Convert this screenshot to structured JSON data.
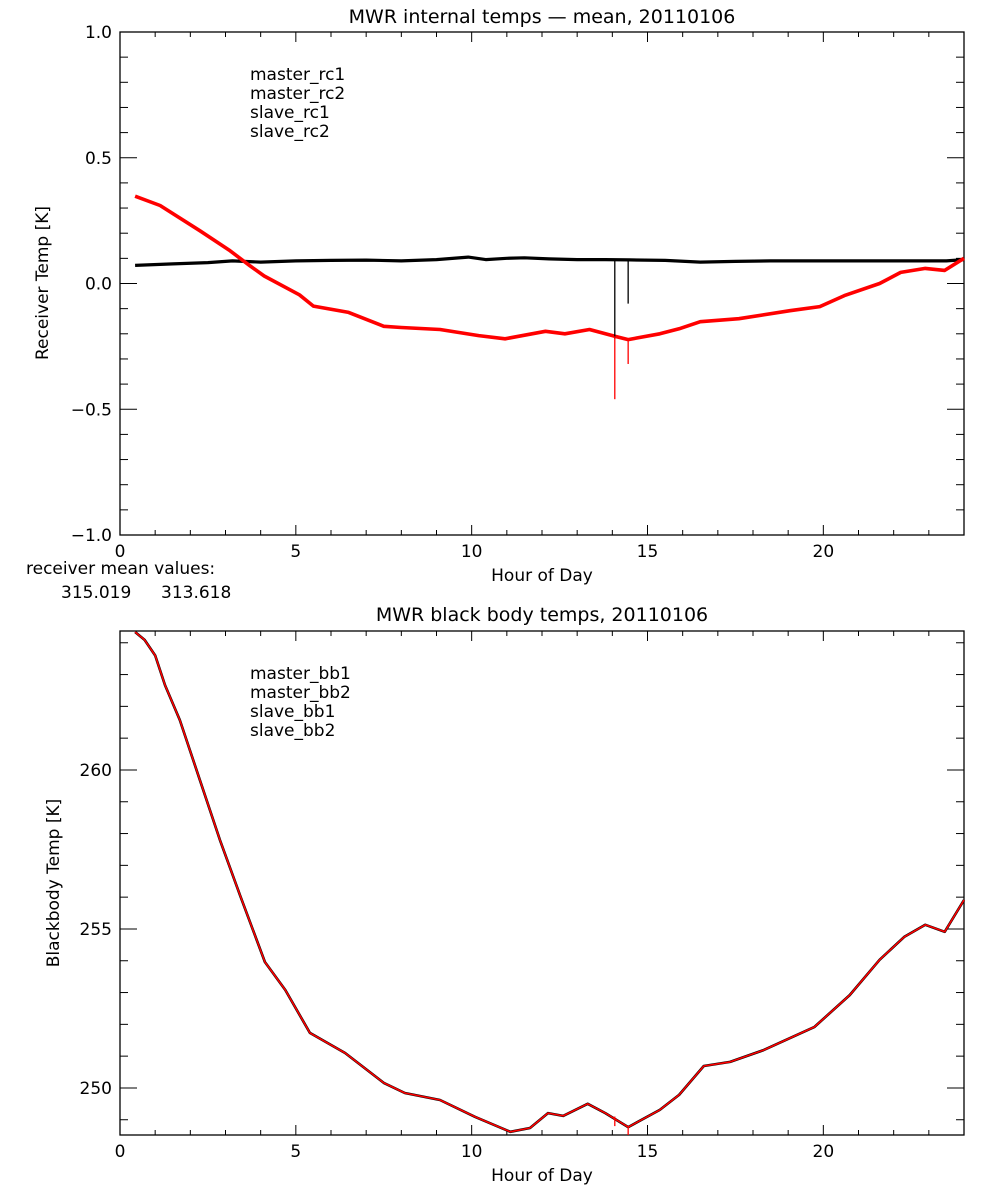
{
  "chart_data": [
    {
      "type": "line",
      "title": "MWR internal temps — mean, 20110106",
      "xlabel": "Hour of Day",
      "ylabel": "Receiver Temp [K]",
      "xlim": [
        0,
        24
      ],
      "ylim": [
        -1.0,
        1.0
      ],
      "x_major_ticks": [
        0,
        5,
        10,
        15,
        20
      ],
      "x_tick_labels": [
        "0",
        "5",
        "10",
        "15",
        "20"
      ],
      "x_minor_step": 1,
      "y_major_ticks": [
        -1.0,
        -0.5,
        0.0,
        0.5,
        1.0
      ],
      "y_tick_labels": [
        "−1.0",
        "−0.5",
        "0.0",
        "0.5",
        "1.0"
      ],
      "y_minor_step": 0.1,
      "grid": false,
      "legend_position": "top-left",
      "legend": [
        {
          "name": "master_rc1",
          "color": "#000000"
        },
        {
          "name": "master_rc2",
          "color": "#ff0000"
        },
        {
          "name": "slave_rc1",
          "color": "#0000ff"
        },
        {
          "name": "slave_rc2",
          "color": "#00ff00"
        }
      ],
      "series": [
        {
          "name": "master_rc1",
          "color": "#000000",
          "x": [
            0.43,
            1.5,
            2.5,
            3.2,
            4.0,
            5.0,
            6.0,
            7.0,
            8.0,
            9.0,
            9.9,
            10.4,
            11.0,
            11.5,
            12.2,
            13.0,
            13.8,
            14.5,
            15.5,
            16.5,
            17.5,
            18.5,
            19.5,
            20.5,
            21.5,
            22.5,
            23.5,
            24.0
          ],
          "y": [
            0.072,
            0.078,
            0.083,
            0.09,
            0.085,
            0.09,
            0.092,
            0.093,
            0.09,
            0.095,
            0.105,
            0.095,
            0.1,
            0.102,
            0.098,
            0.095,
            0.095,
            0.094,
            0.092,
            0.085,
            0.088,
            0.09,
            0.09,
            0.09,
            0.09,
            0.09,
            0.09,
            0.095
          ]
        },
        {
          "name": "master_rc2",
          "color": "#ff0000",
          "x": [
            0.43,
            1.14,
            2.27,
            3.13,
            3.7,
            4.1,
            5.1,
            5.5,
            6.5,
            7.5,
            8.0,
            9.1,
            10.2,
            10.95,
            12.1,
            12.65,
            13.35,
            14.07,
            14.45,
            15.35,
            15.9,
            16.5,
            17.6,
            19.05,
            19.9,
            20.6,
            21.6,
            22.2,
            22.9,
            23.45,
            24.0
          ],
          "y": [
            0.347,
            0.31,
            0.21,
            0.13,
            0.07,
            0.03,
            -0.045,
            -0.09,
            -0.115,
            -0.17,
            -0.175,
            -0.183,
            -0.207,
            -0.22,
            -0.19,
            -0.2,
            -0.183,
            -0.21,
            -0.223,
            -0.2,
            -0.18,
            -0.152,
            -0.14,
            -0.108,
            -0.092,
            -0.048,
            0.0,
            0.044,
            0.06,
            0.052,
            0.1
          ]
        }
      ],
      "spikes": [
        {
          "series": "master_rc1",
          "x": 14.07,
          "from": 0.09,
          "to": -0.22
        },
        {
          "series": "master_rc1",
          "x": 14.45,
          "from": 0.09,
          "to": -0.08
        },
        {
          "series": "master_rc2",
          "x": 14.07,
          "from": -0.21,
          "to": -0.46
        },
        {
          "series": "master_rc2",
          "x": 14.45,
          "from": -0.22,
          "to": -0.32
        }
      ],
      "annotation": {
        "label": "receiver mean values:",
        "values": [
          {
            "text": "315.019",
            "color": "#000000"
          },
          {
            "text": "313.618",
            "color": "#ff0000"
          }
        ]
      }
    },
    {
      "type": "line",
      "title": "MWR black body temps, 20110106",
      "xlabel": "Hour of Day",
      "ylabel": "Blackbody Temp [K]",
      "xlim": [
        0,
        24
      ],
      "ylim": [
        248.52,
        264.37
      ],
      "x_major_ticks": [
        0,
        5,
        10,
        15,
        20
      ],
      "x_tick_labels": [
        "0",
        "5",
        "10",
        "15",
        "20"
      ],
      "x_minor_step": 1,
      "y_major_ticks": [
        250,
        255,
        260
      ],
      "y_tick_labels": [
        "250",
        "255",
        "260"
      ],
      "y_minor_step": 1,
      "grid": false,
      "legend_position": "top-left",
      "legend": [
        {
          "name": "master_bb1",
          "color": "#000000"
        },
        {
          "name": "master_bb2",
          "color": "#ff0000"
        },
        {
          "name": "slave_bb1",
          "color": "#0000ff"
        },
        {
          "name": "slave_bb2",
          "color": "#00ff00"
        }
      ],
      "series": [
        {
          "name": "master_bb1",
          "color": "#000000",
          "x": [
            0.43,
            0.7,
            1.0,
            1.28,
            1.7,
            2.27,
            2.84,
            3.41,
            4.12,
            4.7,
            5.4,
            6.4,
            7.5,
            8.1,
            9.1,
            10.1,
            11.1,
            11.66,
            12.17,
            12.6,
            13.3,
            13.8,
            14.45,
            15.35,
            15.9,
            16.6,
            17.35,
            18.3,
            19.75,
            20.75,
            21.6,
            22.3,
            22.9,
            23.45,
            24.0
          ],
          "y": [
            264.34,
            264.09,
            263.6,
            262.67,
            261.57,
            259.69,
            257.8,
            256.07,
            253.96,
            253.08,
            251.73,
            251.1,
            250.16,
            249.84,
            249.62,
            249.09,
            248.62,
            248.74,
            249.21,
            249.12,
            249.5,
            249.21,
            248.77,
            249.31,
            249.78,
            250.69,
            250.82,
            251.19,
            251.92,
            252.92,
            254.03,
            254.75,
            255.13,
            254.91,
            255.91
          ]
        },
        {
          "name": "master_bb2",
          "color": "#ff0000",
          "x": [
            0.43,
            0.7,
            1.0,
            1.28,
            1.7,
            2.27,
            2.84,
            3.41,
            4.12,
            4.7,
            5.4,
            6.4,
            7.5,
            8.1,
            9.1,
            10.1,
            11.1,
            11.66,
            12.17,
            12.6,
            13.3,
            13.8,
            14.45,
            15.35,
            15.9,
            16.6,
            17.35,
            18.3,
            19.75,
            20.75,
            21.6,
            22.3,
            22.9,
            23.45,
            24.0
          ],
          "y": [
            264.34,
            264.09,
            263.6,
            262.67,
            261.57,
            259.69,
            257.8,
            256.07,
            253.96,
            253.08,
            251.73,
            251.1,
            250.16,
            249.84,
            249.62,
            249.09,
            248.62,
            248.74,
            249.21,
            249.12,
            249.5,
            249.21,
            248.77,
            249.31,
            249.78,
            250.69,
            250.82,
            251.19,
            251.92,
            252.92,
            254.03,
            254.75,
            255.13,
            254.91,
            255.91
          ]
        }
      ],
      "spikes": [
        {
          "series": "master_bb2",
          "x": 14.07,
          "from": 249.1,
          "to": 248.8
        },
        {
          "series": "master_bb2",
          "x": 14.45,
          "from": 248.77,
          "to": 248.52
        }
      ]
    }
  ]
}
